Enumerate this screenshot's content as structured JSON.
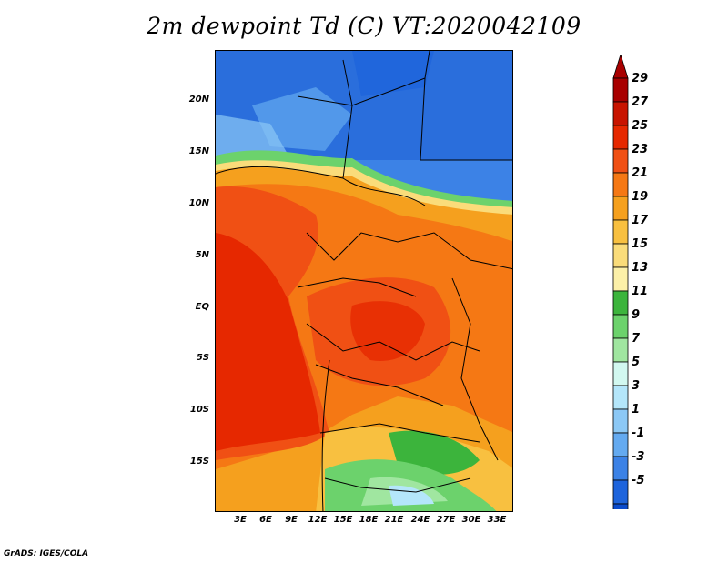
{
  "title": "2m dewpoint Td (C) VT:2020042109",
  "credit": "GrADS: IGES/COLA",
  "map": {
    "type": "filled-contour",
    "region": "Central / Equatorial Africa",
    "lat_labels": [
      "20N",
      "15N",
      "10N",
      "5N",
      "EQ",
      "5S",
      "10S",
      "15S"
    ],
    "lon_labels": [
      "3E",
      "6E",
      "9E",
      "12E",
      "15E",
      "18E",
      "21E",
      "24E",
      "27E",
      "30E",
      "33E"
    ]
  },
  "colorbar": {
    "levels": [
      "29",
      "27",
      "25",
      "23",
      "21",
      "19",
      "17",
      "15",
      "13",
      "11",
      "9",
      "7",
      "5",
      "3",
      "1",
      "-1",
      "-3",
      "-5"
    ],
    "colors": [
      "#a80000",
      "#c81400",
      "#e62800",
      "#f05014",
      "#f57814",
      "#f5a01e",
      "#f8c040",
      "#fadc7a",
      "#fcf0a8",
      "#3cb43c",
      "#6cd26c",
      "#a0e6a0",
      "#d2f8f0",
      "#b4e6fa",
      "#8cc8f5",
      "#64aaf0",
      "#3c82e6",
      "#1e64dc",
      "#0a4bcc"
    ],
    "bottom_arrow_color": "#1e64dc",
    "top_arrow_color": "#a80000"
  }
}
